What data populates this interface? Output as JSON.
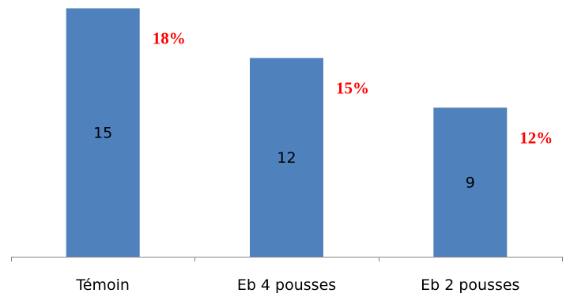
{
  "chart_data": {
    "type": "bar",
    "categories": [
      "Témoin",
      "Eb 4 pousses",
      "Eb 2 pousses"
    ],
    "values": [
      15,
      12,
      9
    ],
    "data_labels": [
      "15",
      "12",
      "9"
    ],
    "annotations": [
      "18%",
      "15%",
      "12%"
    ],
    "title": "",
    "xlabel": "",
    "ylabel": "",
    "ylim": [
      0,
      15.5
    ],
    "grid": false,
    "legend": "none",
    "colors": {
      "bar": "#4f81bd",
      "annotation": "#ff0000",
      "axis": "#868686"
    }
  }
}
